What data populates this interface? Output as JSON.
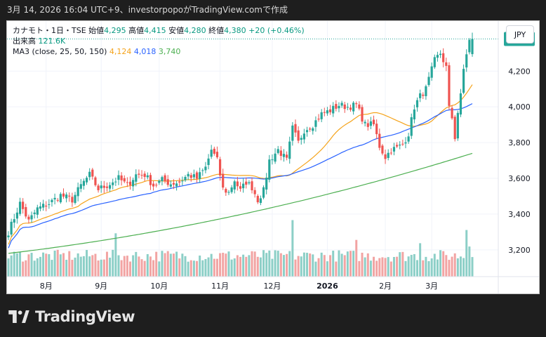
{
  "header": {
    "caption": "3月 14, 2026 16:04 UTC+9、investorpopoがTradingView.comで作成"
  },
  "legend": {
    "symbol": "カナモト・1日・TSE",
    "open_label": "始値",
    "open": "4,295",
    "high_label": "高値",
    "high": "4,415",
    "low_label": "安値",
    "low": "4,280",
    "close_label": "終値",
    "close": "4,380",
    "change": "+20 (+0.46%)",
    "volume_label": "出来高",
    "volume": "121.6K",
    "ma_label": "MA3 (close, 25, 50, 150)",
    "ma1": "4,124",
    "ma2": "4,018",
    "ma3": "3,740"
  },
  "currency": "JPY",
  "footer": {
    "brand": "TradingView"
  },
  "colors": {
    "up": "#26a69a",
    "down": "#ef5350",
    "up_vol": "#8ccfc7",
    "down_vol": "#f2a4a3",
    "ma25": "#f5a31a",
    "ma50": "#2962ff",
    "ma150": "#4caf50",
    "price_tag": "#26a69a"
  },
  "chart_data": {
    "type": "candlestick",
    "y_axis_ticks": [
      "4,200",
      "4,000",
      "3,800",
      "3,600",
      "3,400",
      "3,200"
    ],
    "y_axis_values": [
      4200,
      4000,
      3800,
      3600,
      3400,
      3200
    ],
    "ylim": [
      3050,
      4480
    ],
    "x_axis_ticks": [
      "8月",
      "9月",
      "10月",
      "11月",
      "12月",
      "2026",
      "2月",
      "3月"
    ],
    "x_tick_index": [
      13,
      32,
      52,
      73,
      91,
      110,
      130,
      146
    ],
    "last_price": "4,380",
    "last_price_value": 4380,
    "anchors": [
      [
        0,
        3300
      ],
      [
        4,
        3460
      ],
      [
        7,
        3360
      ],
      [
        10,
        3430
      ],
      [
        14,
        3460
      ],
      [
        18,
        3505
      ],
      [
        22,
        3480
      ],
      [
        25,
        3560
      ],
      [
        28,
        3620
      ],
      [
        31,
        3540
      ],
      [
        34,
        3560
      ],
      [
        38,
        3600
      ],
      [
        41,
        3560
      ],
      [
        44,
        3620
      ],
      [
        47,
        3620
      ],
      [
        50,
        3560
      ],
      [
        53,
        3590
      ],
      [
        56,
        3570
      ],
      [
        59,
        3580
      ],
      [
        62,
        3620
      ],
      [
        65,
        3600
      ],
      [
        68,
        3660
      ],
      [
        70,
        3760
      ],
      [
        72,
        3700
      ],
      [
        74,
        3540
      ],
      [
        76,
        3520
      ],
      [
        78,
        3590
      ],
      [
        80,
        3530
      ],
      [
        82,
        3580
      ],
      [
        84,
        3550
      ],
      [
        86,
        3480
      ],
      [
        88,
        3530
      ],
      [
        90,
        3700
      ],
      [
        93,
        3760
      ],
      [
        96,
        3700
      ],
      [
        98,
        3880
      ],
      [
        100,
        3800
      ],
      [
        102,
        3870
      ],
      [
        105,
        3900
      ],
      [
        108,
        3960
      ],
      [
        111,
        3980
      ],
      [
        114,
        4010
      ],
      [
        117,
        4000
      ],
      [
        120,
        4010
      ],
      [
        123,
        3900
      ],
      [
        126,
        3900
      ],
      [
        128,
        3780
      ],
      [
        130,
        3720
      ],
      [
        132,
        3760
      ],
      [
        134,
        3770
      ],
      [
        136,
        3790
      ],
      [
        138,
        3850
      ],
      [
        140,
        4000
      ],
      [
        142,
        4060
      ],
      [
        144,
        4100
      ],
      [
        147,
        4260
      ],
      [
        149,
        4300
      ],
      [
        151,
        4220
      ],
      [
        152,
        3990
      ],
      [
        153,
        3940
      ],
      [
        154,
        3830
      ],
      [
        155,
        3970
      ],
      [
        156,
        4060
      ],
      [
        157,
        4210
      ],
      [
        158,
        4300
      ],
      [
        159,
        4370
      ],
      [
        160,
        4380
      ]
    ],
    "volume_spikes": [
      [
        37,
        0.55
      ],
      [
        98,
        0.75
      ],
      [
        120,
        0.45
      ],
      [
        142,
        0.4
      ],
      [
        158,
        0.6
      ],
      [
        159,
        0.35
      ]
    ],
    "ma_end": {
      "ma25": 4124,
      "ma50": 4018,
      "ma150": 3740
    },
    "ma_start": {
      "ma25": 3230,
      "ma50": 3210,
      "ma150": 3180
    }
  }
}
